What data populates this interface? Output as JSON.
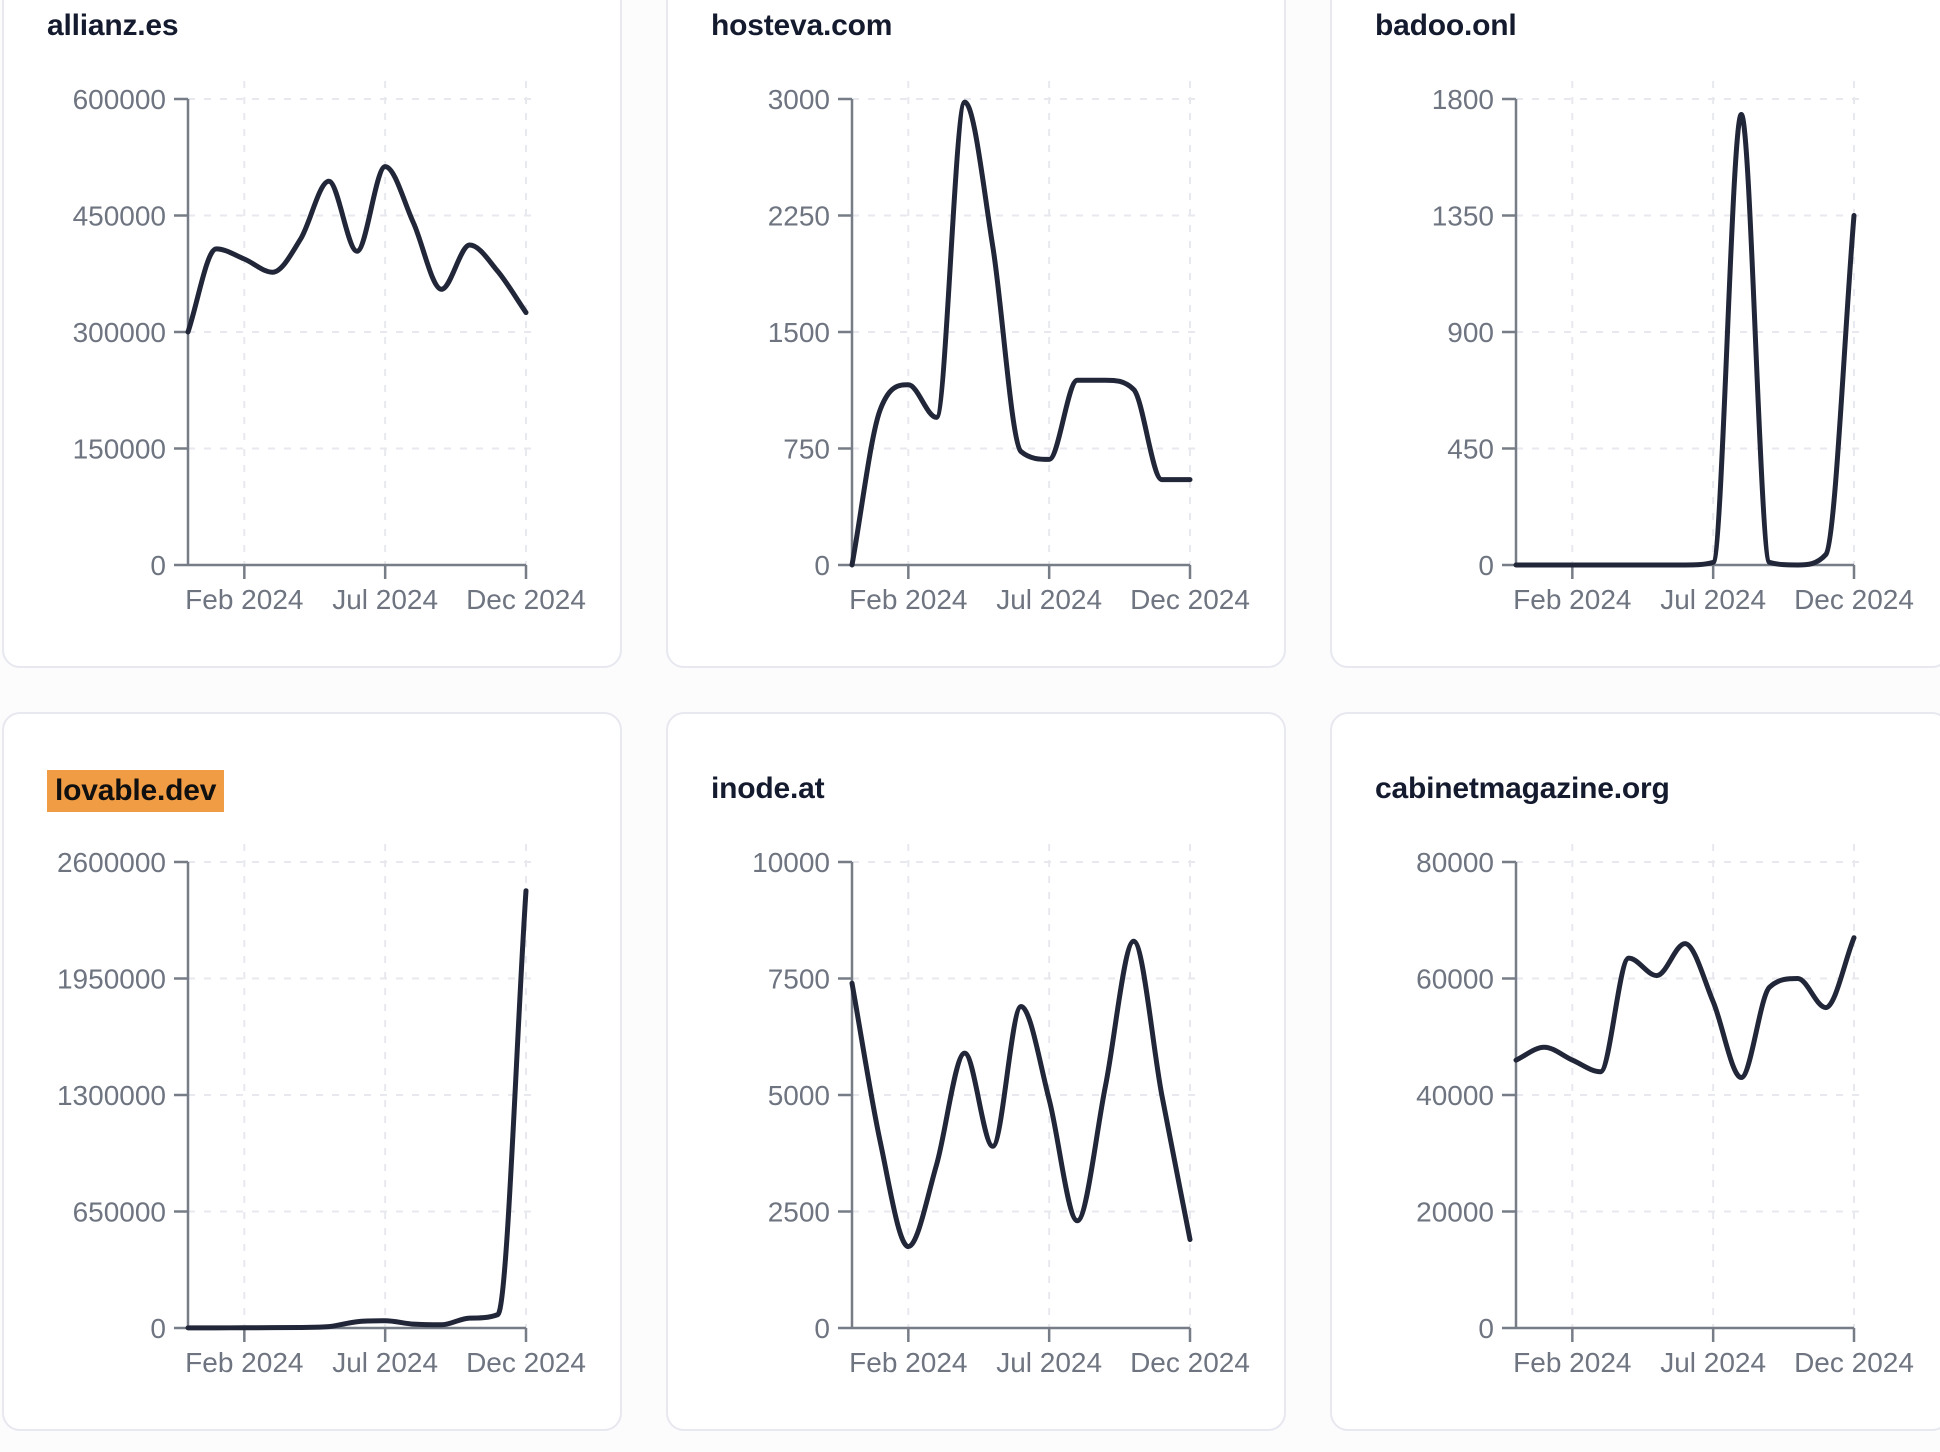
{
  "page": {
    "background": "#fcfcfd",
    "card_background": "#ffffff",
    "card_border": "#e7e8f0"
  },
  "colors": {
    "line": "#212639",
    "title_text": "#151b2e",
    "axis_label": "#6e7480",
    "axis_line": "#777d87",
    "gridline": "#e8e9ee",
    "highlight_background": "#f09c44",
    "highlight_text": "#101010"
  },
  "chart_data": [
    {
      "type": "line",
      "title": "allianz.es",
      "title_highlighted": false,
      "x": [
        "Dec 2023",
        "Jan 2024",
        "Feb 2024",
        "Mar 2024",
        "Apr 2024",
        "May 2024",
        "Jun 2024",
        "Jul 2024",
        "Aug 2024",
        "Sep 2024",
        "Oct 2024",
        "Nov 2024",
        "Dec 2024"
      ],
      "values": [
        300000,
        407000,
        394000,
        377000,
        420000,
        494000,
        404000,
        513000,
        441000,
        355000,
        412000,
        378000,
        325000
      ],
      "x_tick_labels": [
        "Feb 2024",
        "Jul 2024",
        "Dec 2024"
      ],
      "x_tick_indices": [
        2,
        7,
        12
      ],
      "y_ticks": [
        0,
        150000,
        300000,
        450000,
        600000
      ],
      "ylim": [
        0,
        600000
      ],
      "xlabel": "",
      "ylabel": "",
      "grid": "dashed",
      "legend": "none"
    },
    {
      "type": "line",
      "title": "hosteva.com",
      "title_highlighted": false,
      "x": [
        "Dec 2023",
        "Jan 2024",
        "Feb 2024",
        "Mar 2024",
        "Apr 2024",
        "May 2024",
        "Jun 2024",
        "Jul 2024",
        "Aug 2024",
        "Sep 2024",
        "Oct 2024",
        "Nov 2024",
        "Dec 2024"
      ],
      "values": [
        0,
        1000,
        1160,
        950,
        2980,
        2050,
        730,
        680,
        1190,
        1190,
        1130,
        550,
        550
      ],
      "x_tick_labels": [
        "Feb 2024",
        "Jul 2024",
        "Dec 2024"
      ],
      "x_tick_indices": [
        2,
        7,
        12
      ],
      "y_ticks": [
        0,
        750,
        1500,
        2250,
        3000
      ],
      "ylim": [
        0,
        3000
      ],
      "xlabel": "",
      "ylabel": "",
      "grid": "dashed",
      "legend": "none"
    },
    {
      "type": "line",
      "title": "badoo.onl",
      "title_highlighted": false,
      "x": [
        "Dec 2023",
        "Jan 2024",
        "Feb 2024",
        "Mar 2024",
        "Apr 2024",
        "May 2024",
        "Jun 2024",
        "Jul 2024",
        "Aug 2024",
        "Sep 2024",
        "Oct 2024",
        "Nov 2024",
        "Dec 2024"
      ],
      "values": [
        0,
        0,
        0,
        0,
        0,
        0,
        0,
        10,
        1740,
        10,
        0,
        40,
        1350
      ],
      "x_tick_labels": [
        "Feb 2024",
        "Jul 2024",
        "Dec 2024"
      ],
      "x_tick_indices": [
        2,
        7,
        12
      ],
      "y_ticks": [
        0,
        450,
        900,
        1350,
        1800
      ],
      "ylim": [
        0,
        1800
      ],
      "xlabel": "",
      "ylabel": "",
      "grid": "dashed",
      "legend": "none"
    },
    {
      "type": "line",
      "title": "lovable.dev",
      "title_highlighted": true,
      "x": [
        "Dec 2023",
        "Jan 2024",
        "Feb 2024",
        "Mar 2024",
        "Apr 2024",
        "May 2024",
        "Jun 2024",
        "Jul 2024",
        "Aug 2024",
        "Sep 2024",
        "Oct 2024",
        "Nov 2024",
        "Dec 2024"
      ],
      "values": [
        500,
        800,
        1200,
        2000,
        3000,
        8000,
        35000,
        40000,
        22000,
        18000,
        55000,
        75000,
        2440000
      ],
      "x_tick_labels": [
        "Feb 2024",
        "Jul 2024",
        "Dec 2024"
      ],
      "x_tick_indices": [
        2,
        7,
        12
      ],
      "y_ticks": [
        0,
        650000,
        1300000,
        1950000,
        2600000
      ],
      "ylim": [
        0,
        2600000
      ],
      "xlabel": "",
      "ylabel": "",
      "grid": "dashed",
      "legend": "none"
    },
    {
      "type": "line",
      "title": "inode.at",
      "title_highlighted": false,
      "x": [
        "Dec 2023",
        "Jan 2024",
        "Feb 2024",
        "Mar 2024",
        "Apr 2024",
        "May 2024",
        "Jun 2024",
        "Jul 2024",
        "Aug 2024",
        "Sep 2024",
        "Oct 2024",
        "Nov 2024",
        "Dec 2024"
      ],
      "values": [
        7400,
        4000,
        1750,
        3500,
        5900,
        3900,
        6900,
        4900,
        2300,
        5200,
        8300,
        5000,
        1900
      ],
      "x_tick_labels": [
        "Feb 2024",
        "Jul 2024",
        "Dec 2024"
      ],
      "x_tick_indices": [
        2,
        7,
        12
      ],
      "y_ticks": [
        0,
        2500,
        5000,
        7500,
        10000
      ],
      "ylim": [
        0,
        10000
      ],
      "xlabel": "",
      "ylabel": "",
      "grid": "dashed",
      "legend": "none"
    },
    {
      "type": "line",
      "title": "cabinetmagazine.org",
      "title_highlighted": false,
      "x": [
        "Dec 2023",
        "Jan 2024",
        "Feb 2024",
        "Mar 2024",
        "Apr 2024",
        "May 2024",
        "Jun 2024",
        "Jul 2024",
        "Aug 2024",
        "Sep 2024",
        "Oct 2024",
        "Nov 2024",
        "Dec 2024"
      ],
      "values": [
        46000,
        48200,
        46000,
        44000,
        63500,
        60500,
        66000,
        56000,
        43000,
        58500,
        60000,
        55000,
        67000
      ],
      "x_tick_labels": [
        "Feb 2024",
        "Jul 2024",
        "Dec 2024"
      ],
      "x_tick_indices": [
        2,
        7,
        12
      ],
      "y_ticks": [
        0,
        20000,
        40000,
        60000,
        80000
      ],
      "ylim": [
        0,
        80000
      ],
      "xlabel": "",
      "ylabel": "",
      "grid": "dashed",
      "legend": "none"
    }
  ]
}
